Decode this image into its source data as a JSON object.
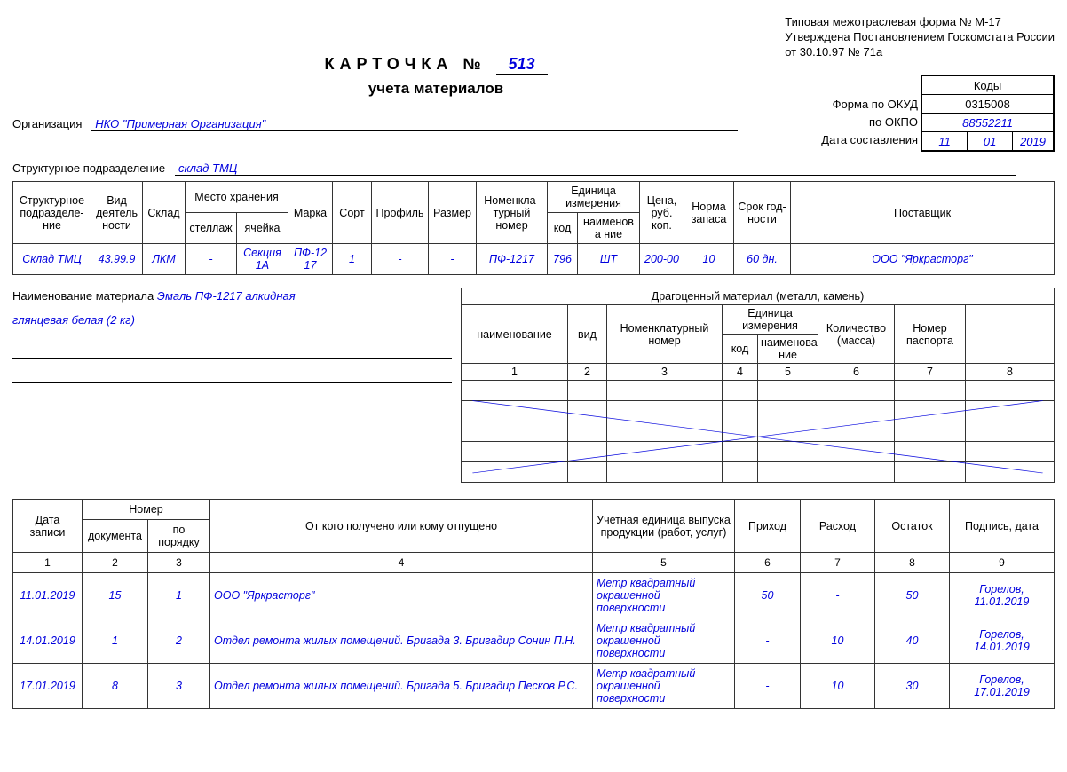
{
  "regulatory": {
    "line1": "Типовая межотраслевая форма № М-17",
    "line2": "Утверждена Постановлением Госкомстата России",
    "line3": "от 30.10.97 № 71а"
  },
  "title": {
    "main": "КАРТОЧКА №",
    "number": "513",
    "sub": "учета материалов"
  },
  "codes": {
    "header": "Коды",
    "okud_label": "Форма по ОКУД",
    "okud": "0315008",
    "okpo_label": "по ОКПО",
    "okpo": "88552211",
    "date_label": "Дата составления",
    "date_d": "11",
    "date_m": "01",
    "date_y": "2019"
  },
  "org": {
    "label": "Организация",
    "value": "НКО \"Примерная Организация\""
  },
  "subdiv": {
    "label": "Структурное подразделение",
    "value": "склад ТМЦ"
  },
  "t1": {
    "headers": {
      "structUnit": "Структурное подразделе-\nние",
      "activity": "Вид деятель ности",
      "warehouse": "Склад",
      "storage": "Место хранения",
      "rack": "стеллаж",
      "cell": "ячейка",
      "brand": "Марка",
      "grade": "Сорт",
      "profile": "Профиль",
      "size": "Размер",
      "nomen": "Номенкла-\nтурный номер",
      "unit": "Единица измерения",
      "unit_code": "код",
      "unit_name": "наименова ние",
      "price": "Цена, руб. коп.",
      "stockNorm": "Норма запаса",
      "shelfLife": "Срок год-\nности",
      "supplier": "Поставщик"
    },
    "row": {
      "structUnit": "Склад ТМЦ",
      "activity": "43.99.9",
      "warehouse": "ЛКМ",
      "rack": "-",
      "cell": "Секция 1А",
      "brand": "ПФ-1217",
      "grade": "1",
      "profile": "-",
      "size": "-",
      "nomen": "ПФ-1217",
      "unit_code": "796",
      "unit_name": "ШТ",
      "price": "200-00",
      "stockNorm": "10",
      "shelfLife": "60 дн.",
      "supplier": "ООО \"Яркрасторг\""
    }
  },
  "material": {
    "label": "Наименование материала",
    "line1": "Эмаль ПФ-1217 алкидная",
    "line2": "глянцевая белая (2 кг)"
  },
  "precious": {
    "title": "Драгоценный материал (металл, камень)",
    "h_name": "наименование",
    "h_kind": "вид",
    "h_nomen": "Номенклатурный номер",
    "h_unit": "Единица измерения",
    "h_unit_code": "код",
    "h_unit_name": "наименова ние",
    "h_qty": "Количество (масса)",
    "h_pass": "Номер паспорта",
    "colnums": [
      "1",
      "2",
      "3",
      "4",
      "5",
      "6",
      "7",
      "8"
    ],
    "strike_color": "#0000dd"
  },
  "mov": {
    "headers": {
      "date": "Дата записи",
      "number": "Номер",
      "doc": "документа",
      "ord": "по порядку",
      "from": "От кого получено или кому отпущено",
      "unitProd": "Учетная единица выпуска продукции (работ, услуг)",
      "in": "Приход",
      "out": "Расход",
      "bal": "Остаток",
      "sign": "Подпись, дата"
    },
    "colnums": [
      "1",
      "2",
      "3",
      "4",
      "5",
      "6",
      "7",
      "8",
      "9"
    ],
    "rows": [
      {
        "date": "11.01.2019",
        "doc": "15",
        "ord": "1",
        "from": "ООО \"Яркрасторг\"",
        "unitProd": "Метр квадратный окрашенной поверхности",
        "in": "50",
        "out": "-",
        "bal": "50",
        "sign": "Горелов, 11.01.2019"
      },
      {
        "date": "14.01.2019",
        "doc": "1",
        "ord": "2",
        "from": "Отдел ремонта жилых помещений. Бригада 3. Бригадир Сонин П.Н.",
        "unitProd": "Метр квадратный окрашенной поверхности",
        "in": "-",
        "out": "10",
        "bal": "40",
        "sign": "Горелов, 14.01.2019"
      },
      {
        "date": "17.01.2019",
        "doc": "8",
        "ord": "3",
        "from": "Отдел ремонта жилых помещений. Бригада 5. Бригадир Песков Р.С.",
        "unitProd": "Метр квадратный окрашенной поверхности",
        "in": "-",
        "out": "10",
        "bal": "30",
        "sign": "Горелов, 17.01.2019"
      }
    ]
  }
}
